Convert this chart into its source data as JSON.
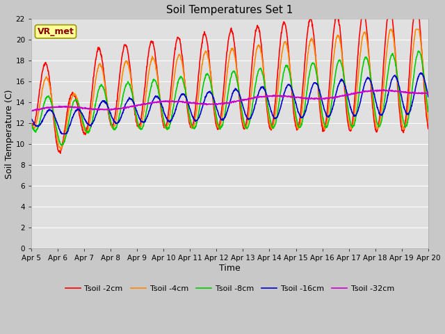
{
  "title": "Soil Temperatures Set 1",
  "xlabel": "Time",
  "ylabel": "Soil Temperature (C)",
  "ylim": [
    0,
    22
  ],
  "yticks": [
    0,
    2,
    4,
    6,
    8,
    10,
    12,
    14,
    16,
    18,
    20,
    22
  ],
  "xtick_labels": [
    "Apr 5",
    "Apr 6",
    "Apr 7",
    "Apr 8",
    "Apr 9",
    "Apr 10",
    "Apr 11",
    "Apr 12",
    "Apr 13",
    "Apr 14",
    "Apr 15",
    "Apr 16",
    "Apr 17",
    "Apr 18",
    "Apr 19",
    "Apr 20"
  ],
  "fig_bg_color": "#c8c8c8",
  "plot_bg_color": "#e0e0e0",
  "grid_color": "#ffffff",
  "annotation_text": "VR_met",
  "annotation_bg": "#ffff99",
  "annotation_border": "#999900",
  "series": [
    {
      "label": "Tsoil -2cm",
      "color": "#ff0000",
      "linewidth": 1.2
    },
    {
      "label": "Tsoil -4cm",
      "color": "#ff8800",
      "linewidth": 1.2
    },
    {
      "label": "Tsoil -8cm",
      "color": "#00cc00",
      "linewidth": 1.2
    },
    {
      "label": "Tsoil -16cm",
      "color": "#0000cc",
      "linewidth": 1.2
    },
    {
      "label": "Tsoil -32cm",
      "color": "#cc00cc",
      "linewidth": 1.2
    }
  ]
}
